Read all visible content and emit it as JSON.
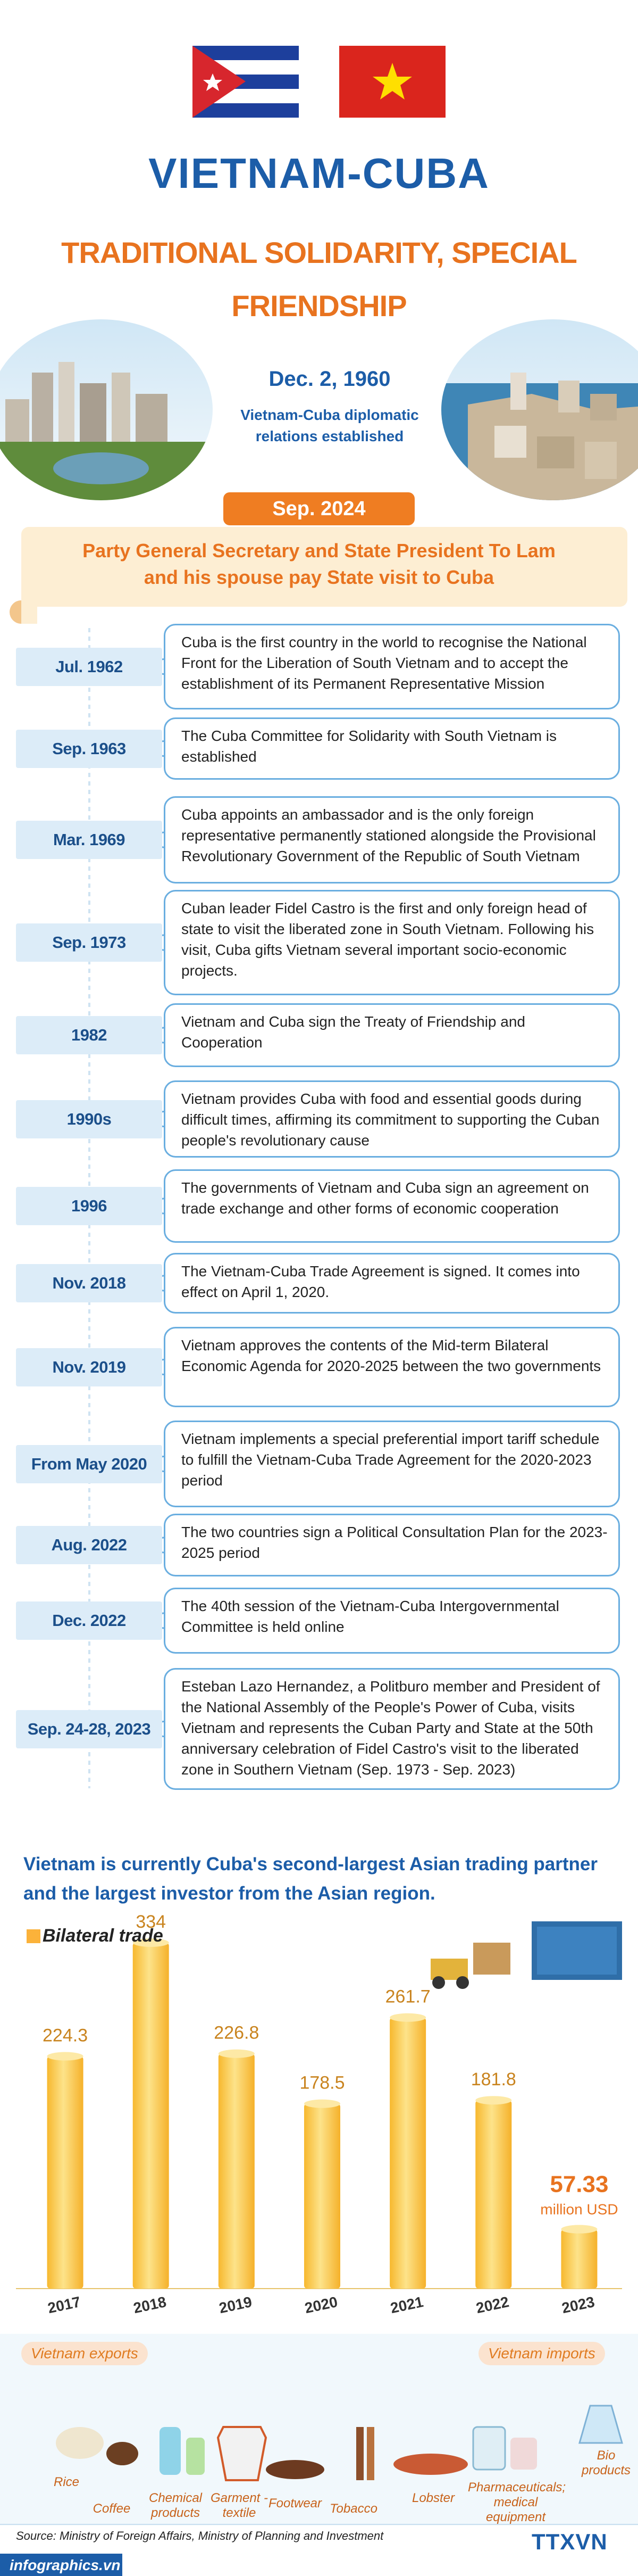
{
  "header": {
    "title": "VIETNAM-CUBA",
    "subtitle": "TRADITIONAL SOLIDARITY, SPECIAL FRIENDSHIP",
    "date": "Dec. 2, 1960",
    "date_note": "Vietnam-Cuba diplomatic relations  established"
  },
  "highlight": {
    "date": "Sep. 2024",
    "text": "Party General Secretary and State President To Lam and his spouse pay State visit to Cuba"
  },
  "timeline": [
    {
      "date": "Jul. 1962",
      "text": "Cuba is the first country in the world to recognise the National Front for the Liberation of South Vietnam and to accept the establishment of its Permanent Representative Mission"
    },
    {
      "date": "Sep. 1963",
      "text": "The Cuba Committee for Solidarity with South Vietnam is established"
    },
    {
      "date": "Mar. 1969",
      "text": "Cuba appoints an ambassador and is the only foreign representative permanently stationed alongside the Provisional Revolutionary Government of the Republic of South Vietnam"
    },
    {
      "date": "Sep. 1973",
      "text": "Cuban leader Fidel Castro is the first and only foreign head of state to visit the liberated zone in South Vietnam. Following his visit, Cuba gifts Vietnam several important socio-economic projects."
    },
    {
      "date": "1982",
      "text": "Vietnam and Cuba sign the Treaty of Friendship and Cooperation"
    },
    {
      "date": "1990s",
      "text": "Vietnam provides Cuba with food and essential goods during difficult times, affirming its commitment to supporting the Cuban people's revolutionary cause"
    },
    {
      "date": "1996",
      "text": "The governments of Vietnam and Cuba sign an agreement on trade exchange and other forms of economic cooperation"
    },
    {
      "date": "Nov. 2018",
      "text": "The Vietnam-Cuba Trade Agreement is signed. It comes into effect on April 1, 2020."
    },
    {
      "date": "Nov. 2019",
      "text": "Vietnam approves the contents of the Mid-term Bilateral Economic Agenda for 2020-2025 between the two governments"
    },
    {
      "date": "From May 2020",
      "text": "Vietnam implements a special preferential import tariff schedule to fulfill the Vietnam-Cuba Trade Agreement for the 2020-2023 period"
    },
    {
      "date": "Aug. 2022",
      "text": "The two countries sign a Political Consultation Plan for the 2023-2025 period"
    },
    {
      "date": "Dec. 2022",
      "text": "The 40th session of the Vietnam-Cuba Intergovernmental Committee is held online"
    },
    {
      "date": "Sep. 24-28, 2023",
      "text": "Esteban Lazo Hernandez, a Politburo member and President of the National Assembly of the People's Power of Cuba, visits Vietnam and represents the Cuban Party and State at the 50th anniversary celebration of Fidel Castro's visit to the liberated zone in Southern Vietnam (Sep. 1973 - Sep. 2023)"
    }
  ],
  "statement": "Vietnam is currently Cuba's second-largest Asian trading partner and the largest investor from the Asian region.",
  "chart_data": {
    "type": "bar",
    "title": "Bilateral trade",
    "categories": [
      "2017",
      "2018",
      "2019",
      "2020",
      "2021",
      "2022",
      "2023"
    ],
    "values": [
      224.3,
      334,
      226.8,
      178.5,
      261.7,
      181.8,
      57.33
    ],
    "unit_label": "million USD",
    "color": "#fbd34a"
  },
  "exports": {
    "title": "Vietnam exports",
    "items": [
      "Rice",
      "Coffee",
      "Chemical products",
      "Garment -textile",
      "Footwear",
      "Tobacco"
    ]
  },
  "imports": {
    "title": "Vietnam imports",
    "items": [
      "Lobster",
      "Pharmaceuticals; medical equipment",
      "Bio products"
    ]
  },
  "footer": {
    "source": "Source: Ministry of Foreign Affairs, Ministry of Planning and Investment",
    "site": "infographics.vn",
    "logo": "TTXVN"
  }
}
